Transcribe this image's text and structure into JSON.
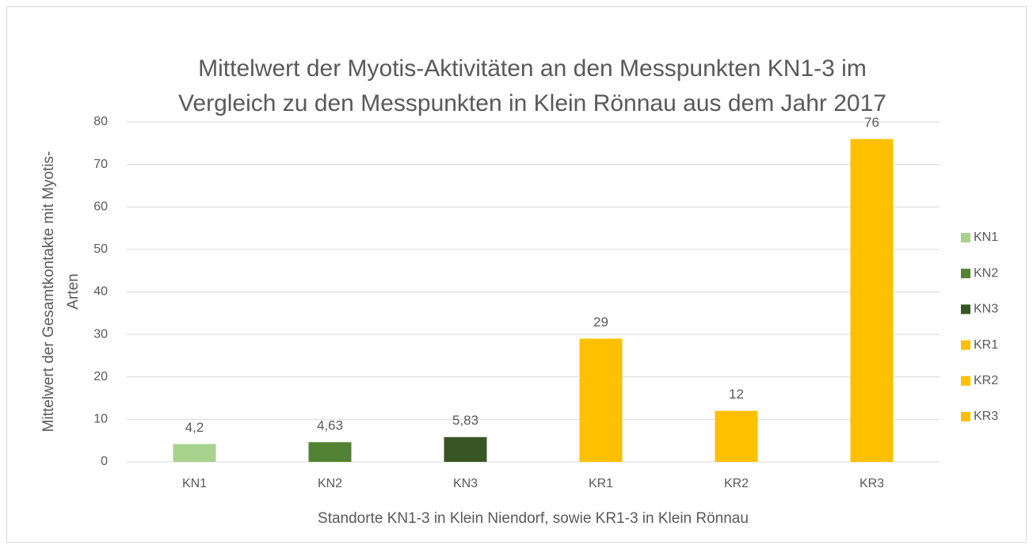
{
  "chart_data": {
    "type": "bar",
    "title": [
      "Mittelwert der Myotis-Aktivitäten an den Messpunkten KN1-3 im",
      "Vergleich zu den Messpunkten in Klein Rönnau aus dem Jahr 2017"
    ],
    "x_label": "Standorte KN1-3 in Klein Niendorf, sowie KR1-3 in Klein Rönnau",
    "y_label": [
      "Mittelwert der Gesamtkontakte mit Myotis-",
      "Arten"
    ],
    "categories": [
      "KN1",
      "KN2",
      "KN3",
      "KR1",
      "KR2",
      "KR3"
    ],
    "values": [
      4.2,
      4.63,
      5.83,
      29,
      12,
      76
    ],
    "value_labels": [
      "4,2",
      "4,63",
      "5,83",
      "29",
      "12",
      "76"
    ],
    "colors": [
      "#a9d18e",
      "#548235",
      "#375623",
      "#ffc000",
      "#ffc000",
      "#ffc000"
    ],
    "ylim": [
      0,
      80
    ],
    "yticks": [
      0,
      10,
      20,
      30,
      40,
      50,
      60,
      70,
      80
    ],
    "grid": true,
    "legend": "right"
  }
}
